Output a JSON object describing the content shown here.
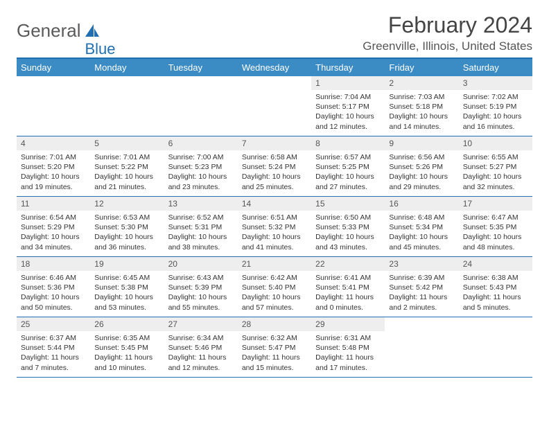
{
  "brand": {
    "general": "General",
    "blue": "Blue"
  },
  "title": "February 2024",
  "location": "Greenville, Illinois, United States",
  "colors": {
    "header_bg": "#3b8bc4",
    "border": "#1f6fb2",
    "daynum_bg": "#eeeeee",
    "text": "#333333"
  },
  "dayNames": [
    "Sunday",
    "Monday",
    "Tuesday",
    "Wednesday",
    "Thursday",
    "Friday",
    "Saturday"
  ],
  "weeks": [
    [
      null,
      null,
      null,
      null,
      {
        "n": "1",
        "sr": "7:04 AM",
        "ss": "5:17 PM",
        "dl": "10 hours and 12 minutes."
      },
      {
        "n": "2",
        "sr": "7:03 AM",
        "ss": "5:18 PM",
        "dl": "10 hours and 14 minutes."
      },
      {
        "n": "3",
        "sr": "7:02 AM",
        "ss": "5:19 PM",
        "dl": "10 hours and 16 minutes."
      }
    ],
    [
      {
        "n": "4",
        "sr": "7:01 AM",
        "ss": "5:20 PM",
        "dl": "10 hours and 19 minutes."
      },
      {
        "n": "5",
        "sr": "7:01 AM",
        "ss": "5:22 PM",
        "dl": "10 hours and 21 minutes."
      },
      {
        "n": "6",
        "sr": "7:00 AM",
        "ss": "5:23 PM",
        "dl": "10 hours and 23 minutes."
      },
      {
        "n": "7",
        "sr": "6:58 AM",
        "ss": "5:24 PM",
        "dl": "10 hours and 25 minutes."
      },
      {
        "n": "8",
        "sr": "6:57 AM",
        "ss": "5:25 PM",
        "dl": "10 hours and 27 minutes."
      },
      {
        "n": "9",
        "sr": "6:56 AM",
        "ss": "5:26 PM",
        "dl": "10 hours and 29 minutes."
      },
      {
        "n": "10",
        "sr": "6:55 AM",
        "ss": "5:27 PM",
        "dl": "10 hours and 32 minutes."
      }
    ],
    [
      {
        "n": "11",
        "sr": "6:54 AM",
        "ss": "5:29 PM",
        "dl": "10 hours and 34 minutes."
      },
      {
        "n": "12",
        "sr": "6:53 AM",
        "ss": "5:30 PM",
        "dl": "10 hours and 36 minutes."
      },
      {
        "n": "13",
        "sr": "6:52 AM",
        "ss": "5:31 PM",
        "dl": "10 hours and 38 minutes."
      },
      {
        "n": "14",
        "sr": "6:51 AM",
        "ss": "5:32 PM",
        "dl": "10 hours and 41 minutes."
      },
      {
        "n": "15",
        "sr": "6:50 AM",
        "ss": "5:33 PM",
        "dl": "10 hours and 43 minutes."
      },
      {
        "n": "16",
        "sr": "6:48 AM",
        "ss": "5:34 PM",
        "dl": "10 hours and 45 minutes."
      },
      {
        "n": "17",
        "sr": "6:47 AM",
        "ss": "5:35 PM",
        "dl": "10 hours and 48 minutes."
      }
    ],
    [
      {
        "n": "18",
        "sr": "6:46 AM",
        "ss": "5:36 PM",
        "dl": "10 hours and 50 minutes."
      },
      {
        "n": "19",
        "sr": "6:45 AM",
        "ss": "5:38 PM",
        "dl": "10 hours and 53 minutes."
      },
      {
        "n": "20",
        "sr": "6:43 AM",
        "ss": "5:39 PM",
        "dl": "10 hours and 55 minutes."
      },
      {
        "n": "21",
        "sr": "6:42 AM",
        "ss": "5:40 PM",
        "dl": "10 hours and 57 minutes."
      },
      {
        "n": "22",
        "sr": "6:41 AM",
        "ss": "5:41 PM",
        "dl": "11 hours and 0 minutes."
      },
      {
        "n": "23",
        "sr": "6:39 AM",
        "ss": "5:42 PM",
        "dl": "11 hours and 2 minutes."
      },
      {
        "n": "24",
        "sr": "6:38 AM",
        "ss": "5:43 PM",
        "dl": "11 hours and 5 minutes."
      }
    ],
    [
      {
        "n": "25",
        "sr": "6:37 AM",
        "ss": "5:44 PM",
        "dl": "11 hours and 7 minutes."
      },
      {
        "n": "26",
        "sr": "6:35 AM",
        "ss": "5:45 PM",
        "dl": "11 hours and 10 minutes."
      },
      {
        "n": "27",
        "sr": "6:34 AM",
        "ss": "5:46 PM",
        "dl": "11 hours and 12 minutes."
      },
      {
        "n": "28",
        "sr": "6:32 AM",
        "ss": "5:47 PM",
        "dl": "11 hours and 15 minutes."
      },
      {
        "n": "29",
        "sr": "6:31 AM",
        "ss": "5:48 PM",
        "dl": "11 hours and 17 minutes."
      },
      null,
      null
    ]
  ],
  "labels": {
    "sunrise": "Sunrise: ",
    "sunset": "Sunset: ",
    "daylight": "Daylight: "
  }
}
